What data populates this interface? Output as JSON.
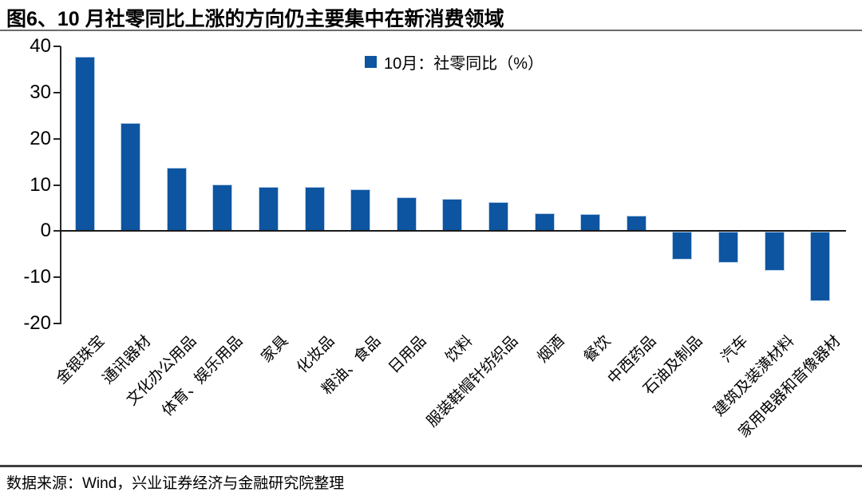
{
  "header": {
    "title": "图6、10 月社零同比上涨的方向仍主要集中在新消费领域"
  },
  "legend": {
    "label": "10月：社零同比（%）"
  },
  "footer": {
    "source": "数据来源：Wind，兴业证券经济与金融研究院整理"
  },
  "colors": {
    "bar": "#0d55a0",
    "bar_edge": "#b7cfe9",
    "axis": "#262626",
    "title_rule": "#6b6b6b",
    "footer_rule": "#404040",
    "text": "#000000"
  },
  "chart_data": {
    "type": "bar",
    "title": "图6、10 月社零同比上涨的方向仍主要集中在新消费领域",
    "legend_entries": [
      "10月：社零同比（%）"
    ],
    "legend_position": "top-center",
    "xlabel": "",
    "ylabel": "",
    "ylim": [
      -20,
      40
    ],
    "yticks": [
      40,
      30,
      20,
      10,
      0,
      -10,
      -20
    ],
    "grid": false,
    "bar_color": "#0d55a0",
    "categories": [
      "金银珠宝",
      "通讯器材",
      "文化办公用品",
      "体育、娱乐用品",
      "家具",
      "化妆品",
      "粮油、食品",
      "日用品",
      "饮料",
      "服装鞋帽针纺织品",
      "烟酒",
      "餐饮",
      "中西药品",
      "石油及制品",
      "汽车",
      "建筑及装潢材料",
      "家用电器和音像器材"
    ],
    "values": [
      37.8,
      23.4,
      13.8,
      10.1,
      9.5,
      9.5,
      9.0,
      7.4,
      6.9,
      6.3,
      3.9,
      3.7,
      3.3,
      -6.0,
      -6.7,
      -8.4,
      -15.0
    ]
  }
}
